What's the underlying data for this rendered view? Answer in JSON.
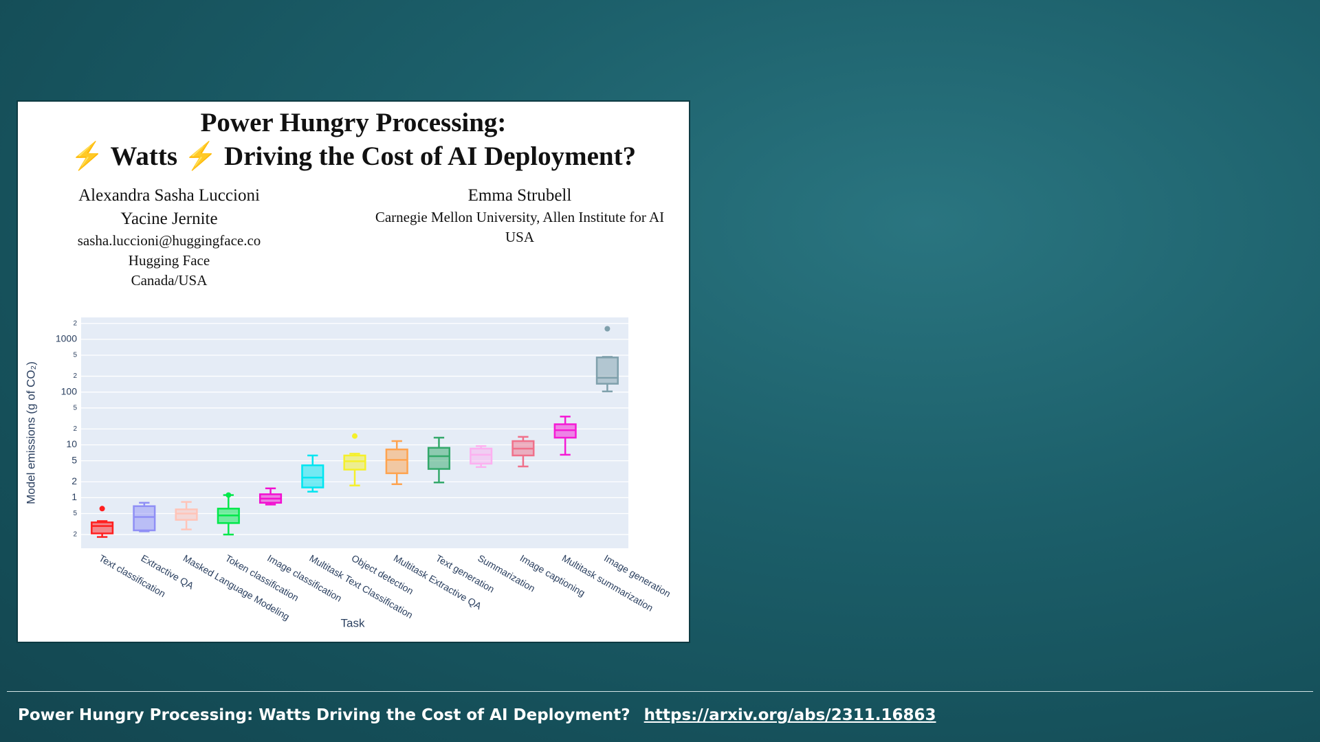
{
  "header": {
    "title_line1": "Power Hungry Processing:",
    "title_line2": "⚡ Watts ⚡ Driving the Cost of AI Deployment?",
    "authors_left": [
      "Alexandra Sasha Luccioni",
      "Yacine Jernite",
      "sasha.luccioni@huggingface.co",
      "Hugging Face",
      "Canada/USA"
    ],
    "authors_right": [
      "Emma Strubell",
      "Carnegie Mellon University, Allen Institute for AI",
      "USA"
    ]
  },
  "chart_data": {
    "type": "box",
    "log": true,
    "grid": true,
    "y_label": "Model emissions (g of CO₂)",
    "x_label": "Task",
    "ylim": [
      0.11,
      2600
    ],
    "yticks": [
      {
        "value": 0.2,
        "label": "2"
      },
      {
        "value": 0.5,
        "label": "5"
      },
      1,
      2,
      5,
      10,
      {
        "value": 20,
        "label": "2"
      },
      {
        "value": 50,
        "label": "5"
      },
      100,
      {
        "value": 200,
        "label": "2"
      },
      {
        "value": 500,
        "label": "5"
      },
      1000,
      {
        "value": 2000,
        "label": "2"
      }
    ],
    "categories": [
      "Text classification",
      "Extractive QA",
      "Masked Language Modeling",
      "Token classification",
      "Image classification",
      "Multitask Text Classification",
      "Object detection",
      "Multitask Extractive QA",
      "Text generation",
      "Summarization",
      "Image captioning",
      "Multitask summarization",
      "Image generation"
    ],
    "colors": [
      "#ff1f1f",
      "#8f8ff5",
      "#ffc4b8",
      "#00e84a",
      "#f20fd0",
      "#00e5f0",
      "#f5f02a",
      "#fea34f",
      "#33a86a",
      "#fcb0f0",
      "#f0708a",
      "#f51ad5",
      "#7fa0ac"
    ],
    "min": [
      0.18,
      0.23,
      0.25,
      0.2,
      0.74,
      1.3,
      1.7,
      1.8,
      1.94,
      3.8,
      3.9,
      6.5,
      103
    ],
    "q1": [
      0.21,
      0.24,
      0.38,
      0.33,
      0.8,
      1.56,
      3.4,
      2.9,
      3.5,
      4.4,
      6.3,
      13.7,
      144
    ],
    "median": [
      0.29,
      0.43,
      0.5,
      0.46,
      0.96,
      2.4,
      4.9,
      5.2,
      6.1,
      6.5,
      8.5,
      19,
      187
    ],
    "q3": [
      0.34,
      0.69,
      0.6,
      0.62,
      1.16,
      4.1,
      6.3,
      8.2,
      8.8,
      8.5,
      11.8,
      24.6,
      453
    ],
    "max": [
      0.36,
      0.8,
      0.83,
      1.12,
      1.5,
      6.3,
      6.8,
      11.8,
      13.7,
      9.5,
      14.2,
      34.4,
      465
    ],
    "outliers": [
      [
        0.62
      ],
      [],
      [],
      [
        1.12
      ],
      [],
      [],
      [
        14.7
      ],
      [],
      [],
      [],
      [],
      [],
      [
        1585
      ]
    ]
  },
  "footer": {
    "text": "Power Hungry Processing: Watts Driving the Cost of AI Deployment?",
    "link": "https://arxiv.org/abs/2311.16863"
  }
}
